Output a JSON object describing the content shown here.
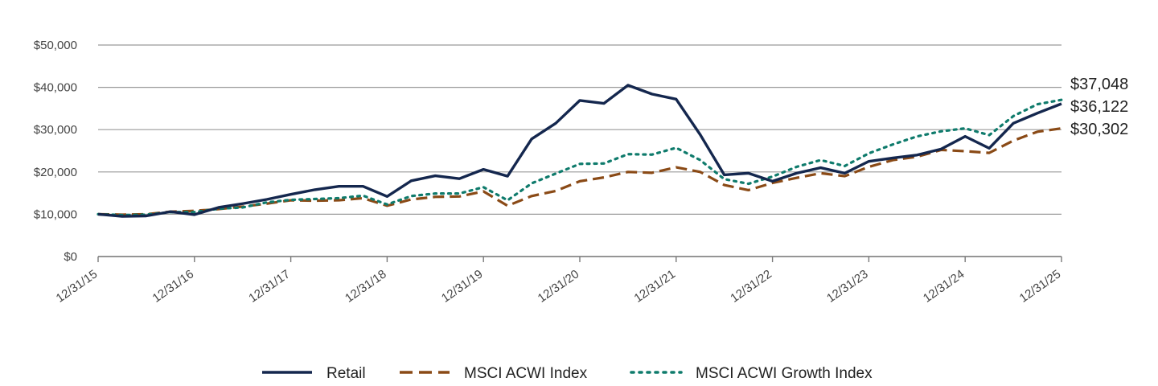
{
  "chart_data": {
    "type": "line",
    "title": "",
    "xlabel": "",
    "ylabel": "",
    "ylim": [
      0,
      50000
    ],
    "yticks": [
      0,
      10000,
      20000,
      30000,
      40000,
      50000
    ],
    "ytick_labels": [
      "$0",
      "$10,000",
      "$20,000",
      "$30,000",
      "$40,000",
      "$50,000"
    ],
    "xtick_labels": [
      "12/31/15",
      "12/31/16",
      "12/31/17",
      "12/31/18",
      "12/31/19",
      "12/31/20",
      "12/31/21",
      "12/31/22",
      "12/31/23",
      "12/31/24",
      "12/31/25"
    ],
    "x_unit": "quarters since 12/31/15",
    "x": [
      0,
      1,
      2,
      3,
      4,
      5,
      6,
      7,
      8,
      9,
      10,
      11,
      12,
      13,
      14,
      15,
      16,
      17,
      18,
      19,
      20,
      21,
      22,
      23,
      24,
      25,
      26,
      27,
      28,
      29,
      30,
      31,
      32,
      33,
      34,
      35,
      36,
      37,
      38,
      39,
      40
    ],
    "grid": "horizontal",
    "legend_position": "bottom",
    "series": [
      {
        "name": "Retail",
        "color": "#14274e",
        "style": "solid",
        "end_label": "$36,122",
        "values": [
          10000,
          9500,
          9600,
          10600,
          9900,
          11600,
          12500,
          13500,
          14700,
          15800,
          16600,
          16600,
          14200,
          17900,
          19100,
          18400,
          20600,
          19000,
          27800,
          31500,
          36900,
          36200,
          40500,
          38400,
          37200,
          28800,
          19300,
          19700,
          17800,
          19700,
          21000,
          19700,
          22500,
          23300,
          24000,
          25400,
          28400,
          25600,
          31500,
          33900,
          36122
        ]
      },
      {
        "name": "MSCI ACWI Index",
        "color": "#8a4a16",
        "style": "dashed",
        "end_label": "$30,302",
        "values": [
          10000,
          9900,
          10000,
          10600,
          10800,
          11200,
          11800,
          12500,
          13300,
          13200,
          13300,
          13800,
          12000,
          13500,
          14100,
          14200,
          15400,
          12000,
          14300,
          15500,
          17800,
          18700,
          20000,
          19800,
          21100,
          20000,
          16900,
          15700,
          17400,
          18600,
          19700,
          19000,
          21200,
          22800,
          23600,
          25200,
          24900,
          24500,
          27400,
          29500,
          30302
        ]
      },
      {
        "name": "MSCI ACWI Growth Index",
        "color": "#0f7b6c",
        "style": "dotted",
        "end_label": "$37,048",
        "values": [
          10000,
          9800,
          9900,
          10500,
          10500,
          11300,
          11600,
          12800,
          13400,
          13600,
          13800,
          14400,
          12300,
          14300,
          14900,
          14900,
          16400,
          13300,
          17300,
          19600,
          21900,
          22000,
          24200,
          24100,
          25700,
          22800,
          18300,
          17200,
          18900,
          21200,
          22800,
          21400,
          24400,
          26500,
          28400,
          29600,
          30300,
          28700,
          33200,
          36000,
          37048
        ]
      }
    ]
  }
}
